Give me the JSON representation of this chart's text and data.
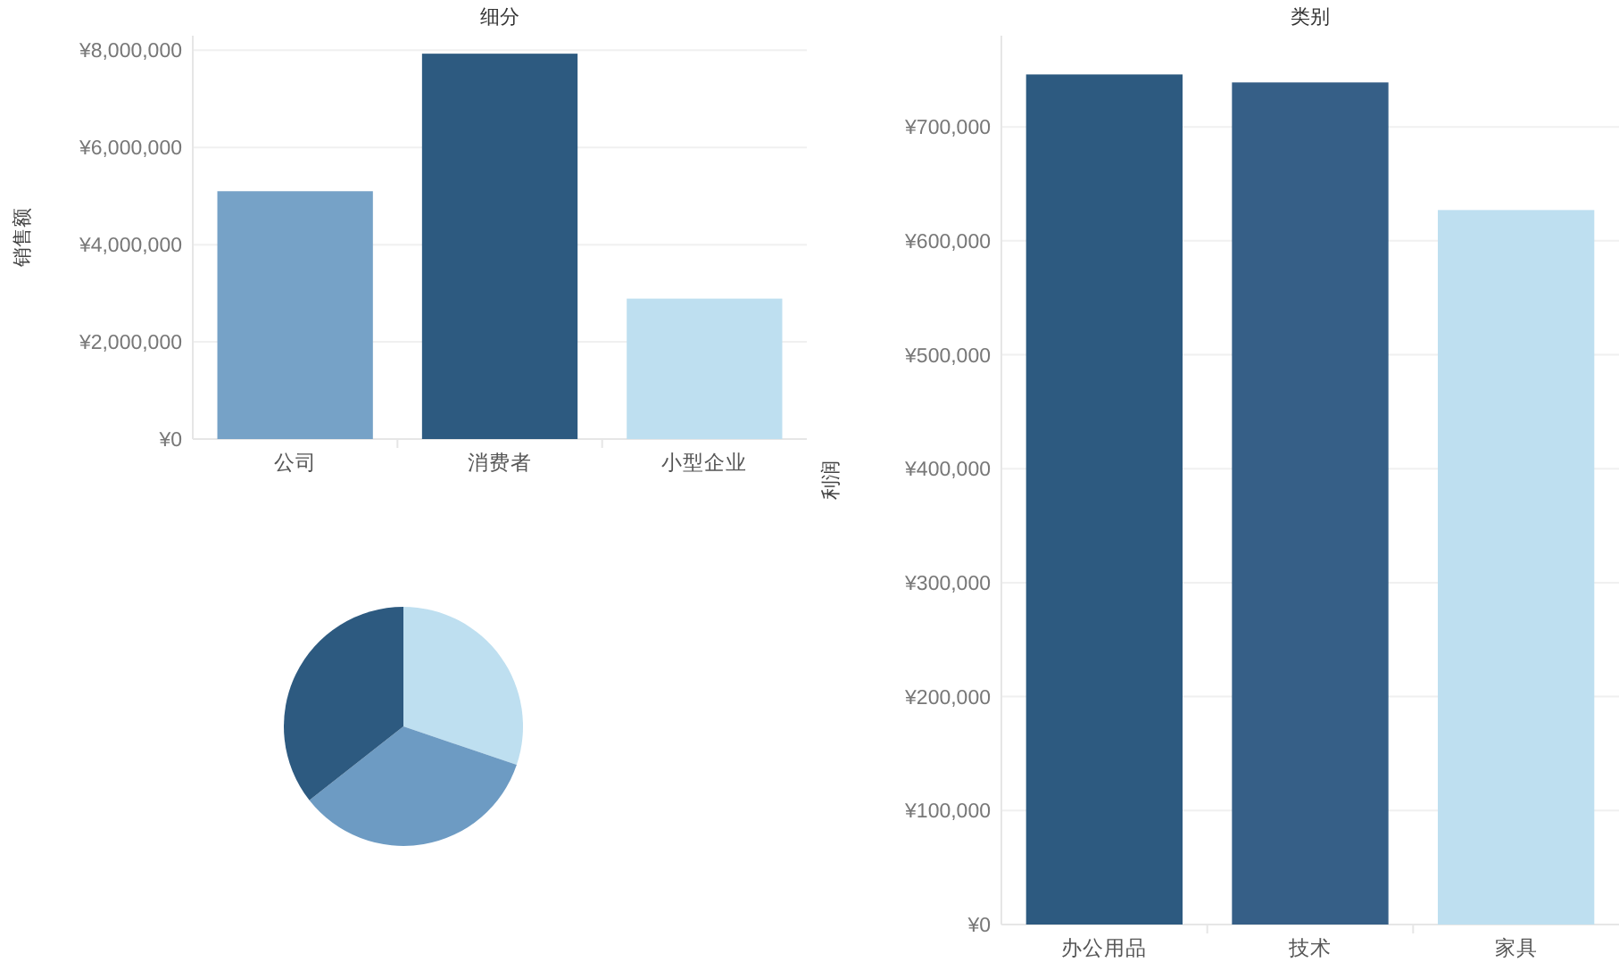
{
  "chart_data": [
    {
      "type": "bar",
      "title": "细分",
      "ylabel": "销售额",
      "categories": [
        "公司",
        "消费者",
        "小型企业"
      ],
      "values": [
        5100000,
        7930000,
        2890000
      ],
      "colors": [
        "#76a2c7",
        "#2d5a80",
        "#bedff0"
      ],
      "ylim": [
        0,
        8300000
      ],
      "yticks": [
        {
          "value": 0,
          "label": "¥0"
        },
        {
          "value": 2000000,
          "label": "¥2,000,000"
        },
        {
          "value": 4000000,
          "label": "¥4,000,000"
        },
        {
          "value": 6000000,
          "label": "¥6,000,000"
        },
        {
          "value": 8000000,
          "label": "¥8,000,000"
        }
      ],
      "grid": "y"
    },
    {
      "type": "bar",
      "title": "类别",
      "ylabel": "利润",
      "categories": [
        "办公用品",
        "技术",
        "家具"
      ],
      "values": [
        746000,
        739000,
        627000
      ],
      "colors": [
        "#2d5a80",
        "#365f87",
        "#bedff0"
      ],
      "ylim": [
        0,
        780000
      ],
      "yticks": [
        {
          "value": 0,
          "label": "¥0"
        },
        {
          "value": 100000,
          "label": "¥100,000"
        },
        {
          "value": 200000,
          "label": "¥200,000"
        },
        {
          "value": 300000,
          "label": "¥300,000"
        },
        {
          "value": 400000,
          "label": "¥400,000"
        },
        {
          "value": 500000,
          "label": "¥500,000"
        },
        {
          "value": 600000,
          "label": "¥600,000"
        },
        {
          "value": 700000,
          "label": "¥700,000"
        }
      ],
      "grid": "y"
    },
    {
      "type": "pie",
      "categories": [
        null,
        null,
        null
      ],
      "values": [
        30.2,
        34.2,
        35.6
      ],
      "colors": [
        "#bedff0",
        "#6d9bc3",
        "#2d5a80"
      ]
    }
  ]
}
